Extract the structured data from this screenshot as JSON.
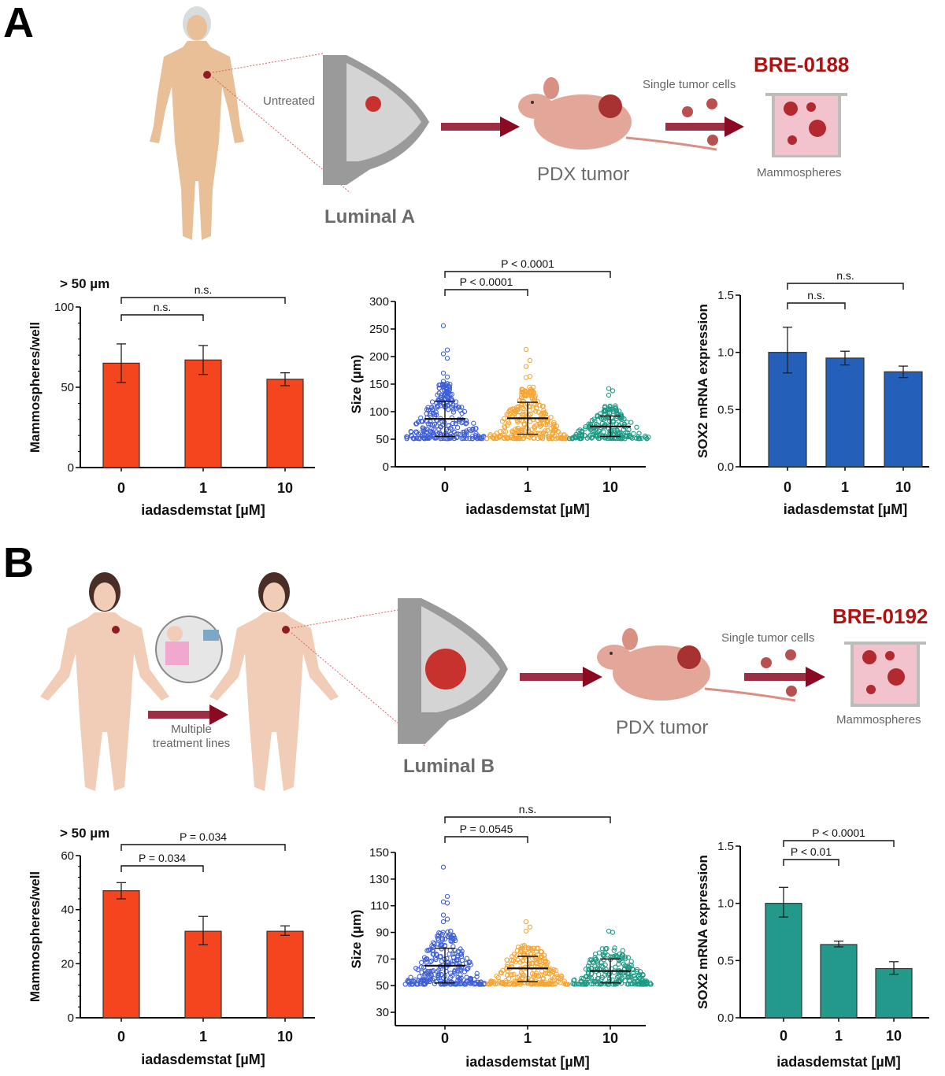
{
  "panels": [
    {
      "letter": "A",
      "illustration": {
        "patient_label": "Untreated",
        "subtype": "Luminal A",
        "pdx_label": "PDX tumor",
        "cells_label": "Single tumor cells",
        "model_id": "BRE-0188",
        "culture_label": "Mammospheres",
        "treatment_label": ""
      }
    },
    {
      "letter": "B",
      "illustration": {
        "patient_label": "",
        "treatment_label": "Multiple treatment lines",
        "subtype": "Luminal B",
        "pdx_label": "PDX tumor",
        "cells_label": "Single tumor cells",
        "model_id": "BRE-0192",
        "culture_label": "Mammospheres"
      }
    }
  ],
  "colors": {
    "bar_red": "#f4451f",
    "bar_blue": "#2460b9",
    "bar_teal": "#22998a",
    "dot_blue": "#3f5fd6",
    "dot_orange": "#f5a532",
    "dot_teal": "#1e9985",
    "model_red": "#b01212",
    "arrow": "#8b0a22"
  },
  "chart_data": [
    {
      "id": "A-count",
      "type": "bar",
      "title": "> 50 µm",
      "categories": [
        "0",
        "1",
        "10"
      ],
      "values": [
        65,
        67,
        55
      ],
      "errors": [
        [
          53,
          77
        ],
        [
          58,
          76
        ],
        [
          51,
          59
        ]
      ],
      "xlabel": "iadasdemstat [µM]",
      "ylabel": "Mammospheres/well",
      "ylim": [
        0,
        100
      ],
      "yticks": [
        0,
        50,
        100
      ],
      "yminor": 10,
      "bar_color": "#f4451f",
      "brackets": [
        {
          "from": 0,
          "to": 1,
          "label": "n.s."
        },
        {
          "from": 0,
          "to": 2,
          "label": "n.s."
        }
      ]
    },
    {
      "id": "A-size",
      "type": "scatter",
      "title": "",
      "categories": [
        "0",
        "1",
        "10"
      ],
      "series": [
        {
          "name": "0",
          "color": "#3f5fd6",
          "mean": 87,
          "sd": [
            55,
            119
          ],
          "min": 51,
          "max": 256,
          "outliers": [
            256,
            212,
            205,
            197,
            170,
            163,
            155,
            151
          ],
          "n": 260
        },
        {
          "name": "1",
          "color": "#f5a532",
          "mean": 88,
          "sd": [
            59,
            117
          ],
          "min": 51,
          "max": 213,
          "outliers": [
            213,
            193,
            182,
            164,
            162
          ],
          "n": 260
        },
        {
          "name": "10",
          "color": "#1e9985",
          "mean": 73,
          "sd": [
            55,
            92
          ],
          "min": 51,
          "max": 142,
          "outliers": [
            142,
            138,
            130
          ],
          "n": 200
        }
      ],
      "xlabel": "iadasdemstat [µM]",
      "ylabel": "Size (µm)",
      "ylim": [
        0,
        300
      ],
      "yticks": [
        0,
        50,
        100,
        150,
        200,
        250,
        300
      ],
      "brackets": [
        {
          "from": 0,
          "to": 1,
          "label": "P < 0.0001"
        },
        {
          "from": 0,
          "to": 2,
          "label": "P < 0.0001"
        }
      ]
    },
    {
      "id": "A-sox2",
      "type": "bar",
      "title": "",
      "categories": [
        "0",
        "1",
        "10"
      ],
      "values": [
        1.0,
        0.95,
        0.83
      ],
      "errors": [
        [
          0.82,
          1.22
        ],
        [
          0.89,
          1.01
        ],
        [
          0.78,
          0.88
        ]
      ],
      "xlabel": "iadasdemstat [µM]",
      "ylabel": "SOX2 mRNA expression",
      "ylim": [
        0,
        1.5
      ],
      "yticks": [
        "0.0",
        "0.5",
        "1.0",
        "1.5"
      ],
      "bar_color": "#2460b9",
      "brackets": [
        {
          "from": 0,
          "to": 1,
          "label": "n.s."
        },
        {
          "from": 0,
          "to": 2,
          "label": "n.s."
        }
      ]
    },
    {
      "id": "B-count",
      "type": "bar",
      "title": "> 50 µm",
      "categories": [
        "0",
        "1",
        "10"
      ],
      "values": [
        47,
        32,
        32
      ],
      "errors": [
        [
          44,
          50
        ],
        [
          27,
          37.5
        ],
        [
          30.5,
          34
        ]
      ],
      "xlabel": "iadasdemstat [µM]",
      "ylabel": "Mammospheres/well",
      "ylim": [
        0,
        60
      ],
      "yticks": [
        0,
        20,
        40,
        60
      ],
      "yminor": 4,
      "bar_color": "#f4451f",
      "brackets": [
        {
          "from": 0,
          "to": 1,
          "label": "P = 0.034"
        },
        {
          "from": 0,
          "to": 2,
          "label": "P = 0.034"
        }
      ]
    },
    {
      "id": "B-size",
      "type": "scatter",
      "title": "",
      "categories": [
        "0",
        "1",
        "10"
      ],
      "series": [
        {
          "name": "0",
          "color": "#3f5fd6",
          "mean": 65,
          "sd": [
            52,
            78
          ],
          "min": 51,
          "max": 139,
          "outliers": [
            139,
            117,
            113,
            112,
            103,
            100,
            98
          ],
          "n": 260
        },
        {
          "name": "1",
          "color": "#f5a532",
          "mean": 63,
          "sd": [
            53,
            72
          ],
          "min": 51,
          "max": 98,
          "outliers": [
            98,
            94,
            91
          ],
          "n": 220
        },
        {
          "name": "10",
          "color": "#1e9985",
          "mean": 61,
          "sd": [
            52,
            70
          ],
          "min": 51,
          "max": 91,
          "outliers": [
            91,
            90
          ],
          "n": 220
        }
      ],
      "xlabel": "iadasdemstat [µM]",
      "ylabel": "Size (µm)",
      "ylim": [
        20,
        150
      ],
      "yticks": [
        30,
        50,
        70,
        90,
        110,
        130,
        150
      ],
      "brackets": [
        {
          "from": 0,
          "to": 1,
          "label": "P = 0.0545"
        },
        {
          "from": 0,
          "to": 2,
          "label": "n.s."
        }
      ]
    },
    {
      "id": "B-sox2",
      "type": "bar",
      "title": "",
      "categories": [
        "0",
        "1",
        "10"
      ],
      "values": [
        1.0,
        0.64,
        0.43
      ],
      "errors": [
        [
          0.88,
          1.14
        ],
        [
          0.62,
          0.67
        ],
        [
          0.38,
          0.49
        ]
      ],
      "xlabel": "iadasdemstat [µM]",
      "ylabel": "SOX2 mRNA expression",
      "ylim": [
        0,
        1.5
      ],
      "yticks": [
        "0.0",
        "0.5",
        "1.0",
        "1.5"
      ],
      "bar_color": "#22998a",
      "brackets": [
        {
          "from": 0,
          "to": 1,
          "label": "P < 0.01"
        },
        {
          "from": 0,
          "to": 2,
          "label": "P < 0.0001"
        }
      ]
    }
  ]
}
